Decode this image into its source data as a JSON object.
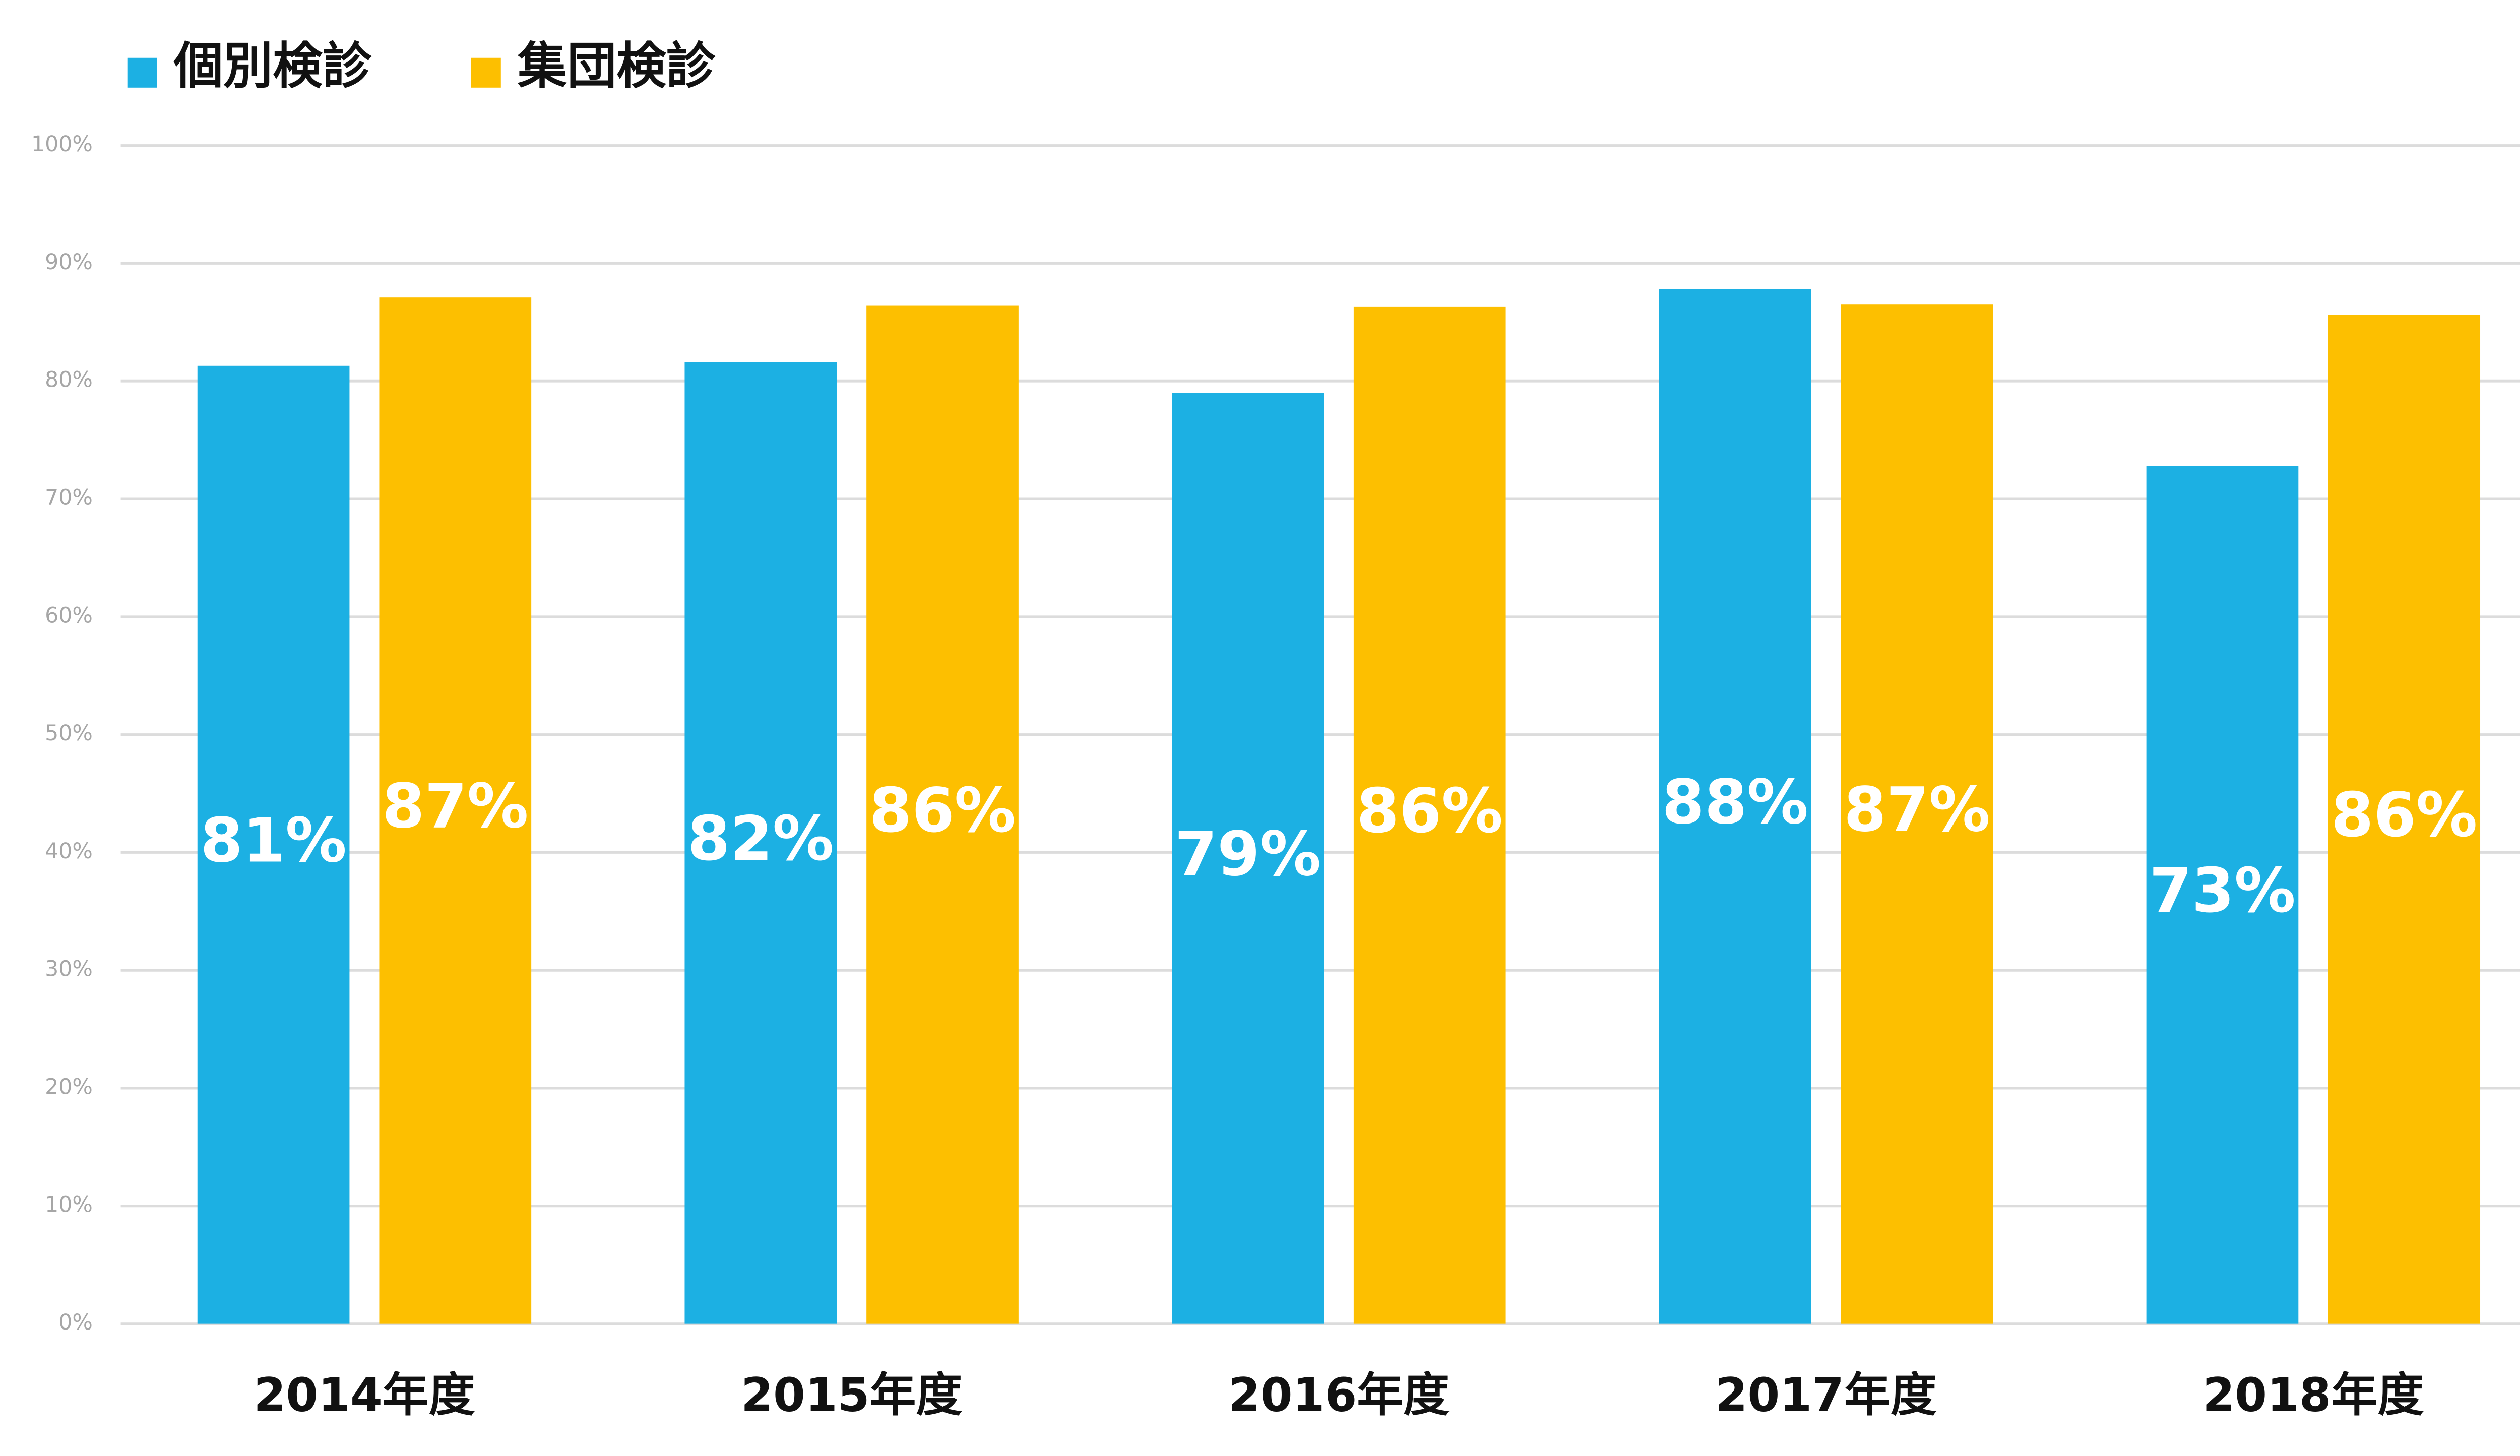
{
  "chart_data": {
    "type": "bar",
    "categories": [
      "2014年度",
      "2015年度",
      "2016年度",
      "2017年度",
      "2018年度"
    ],
    "series": [
      {
        "name": "個別検診",
        "color": "#1cb0e3",
        "values": [
          81.3,
          81.6,
          79.0,
          87.8,
          72.8
        ],
        "value_labels": [
          "81%",
          "82%",
          "79%",
          "88%",
          "73%"
        ]
      },
      {
        "name": "集団検診",
        "color": "#fdbf00",
        "values": [
          87.1,
          86.4,
          86.3,
          86.5,
          85.6
        ],
        "value_labels": [
          "87%",
          "86%",
          "86%",
          "87%",
          "86%"
        ]
      }
    ],
    "ylim": [
      0,
      100
    ],
    "yticks": [
      {
        "value": 0,
        "label": "0%"
      },
      {
        "value": 10,
        "label": "10%"
      },
      {
        "value": 20,
        "label": "20%"
      },
      {
        "value": 30,
        "label": "30%"
      },
      {
        "value": 40,
        "label": "40%"
      },
      {
        "value": 50,
        "label": "50%"
      },
      {
        "value": 60,
        "label": "60%"
      },
      {
        "value": 70,
        "label": "70%"
      },
      {
        "value": 80,
        "label": "80%"
      },
      {
        "value": 90,
        "label": "90%"
      },
      {
        "value": 100,
        "label": "100%"
      }
    ],
    "grid": true,
    "legend": "top-left"
  }
}
